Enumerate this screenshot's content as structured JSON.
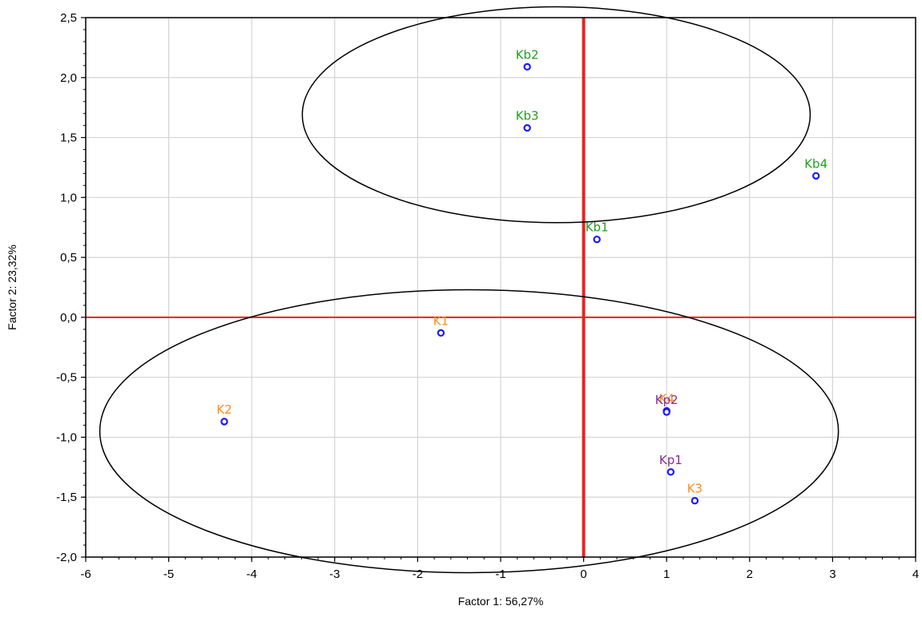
{
  "chart_data": {
    "type": "scatter",
    "title": "",
    "xlabel": "Factor 1: 56,27%",
    "ylabel": "Factor 2: 23,32%",
    "xlim": [
      -6,
      4
    ],
    "ylim": [
      -2.0,
      2.5
    ],
    "x_ticks": [
      -6,
      -5,
      -4,
      -3,
      -2,
      -1,
      0,
      1,
      2,
      3,
      4
    ],
    "x_tick_labels": [
      "-6",
      "-5",
      "-4",
      "-3",
      "-2",
      "-1",
      "0",
      "1",
      "2",
      "3",
      "4"
    ],
    "y_ticks": [
      -2.0,
      -1.5,
      -1.0,
      -0.5,
      0.0,
      0.5,
      1.0,
      1.5,
      2.0,
      2.5
    ],
    "y_tick_labels": [
      "-2,0",
      "-1,5",
      "-1,0",
      "-0,5",
      "0,0",
      "0,5",
      "1,0",
      "1,5",
      "2,0",
      "2,5"
    ],
    "grid": true,
    "reference_lines": {
      "x": 0,
      "y": 0,
      "color": "#e8231f"
    },
    "marker_color": "#1a1aff",
    "label_colors": {
      "K": "#ff8c1a",
      "Kb": "#1f9e1f",
      "Kp": "#8b2a8c"
    },
    "points": [
      {
        "label": "Kb2",
        "x": -0.68,
        "y": 2.09,
        "group": "Kb"
      },
      {
        "label": "Kb3",
        "x": -0.68,
        "y": 1.58,
        "group": "Kb"
      },
      {
        "label": "Kb4",
        "x": 2.8,
        "y": 1.18,
        "group": "Kb"
      },
      {
        "label": "Kb1",
        "x": 0.16,
        "y": 0.65,
        "group": "Kb"
      },
      {
        "label": "K1",
        "x": -1.72,
        "y": -0.13,
        "group": "K"
      },
      {
        "label": "K2",
        "x": -4.33,
        "y": -0.87,
        "group": "K"
      },
      {
        "label": "K4",
        "x": 1.0,
        "y": -0.78,
        "group": "K"
      },
      {
        "label": "Kp2",
        "x": 1.0,
        "y": -0.79,
        "group": "Kp"
      },
      {
        "label": "Kp1",
        "x": 1.05,
        "y": -1.29,
        "group": "Kp"
      },
      {
        "label": "K3",
        "x": 1.34,
        "y": -1.53,
        "group": "K"
      }
    ],
    "ellipses": [
      {
        "cx": -0.33,
        "cy": 1.69,
        "rx": 3.06,
        "ry": 0.9
      },
      {
        "cx": -1.38,
        "cy": -0.95,
        "rx": 4.45,
        "ry": 1.18
      }
    ]
  }
}
